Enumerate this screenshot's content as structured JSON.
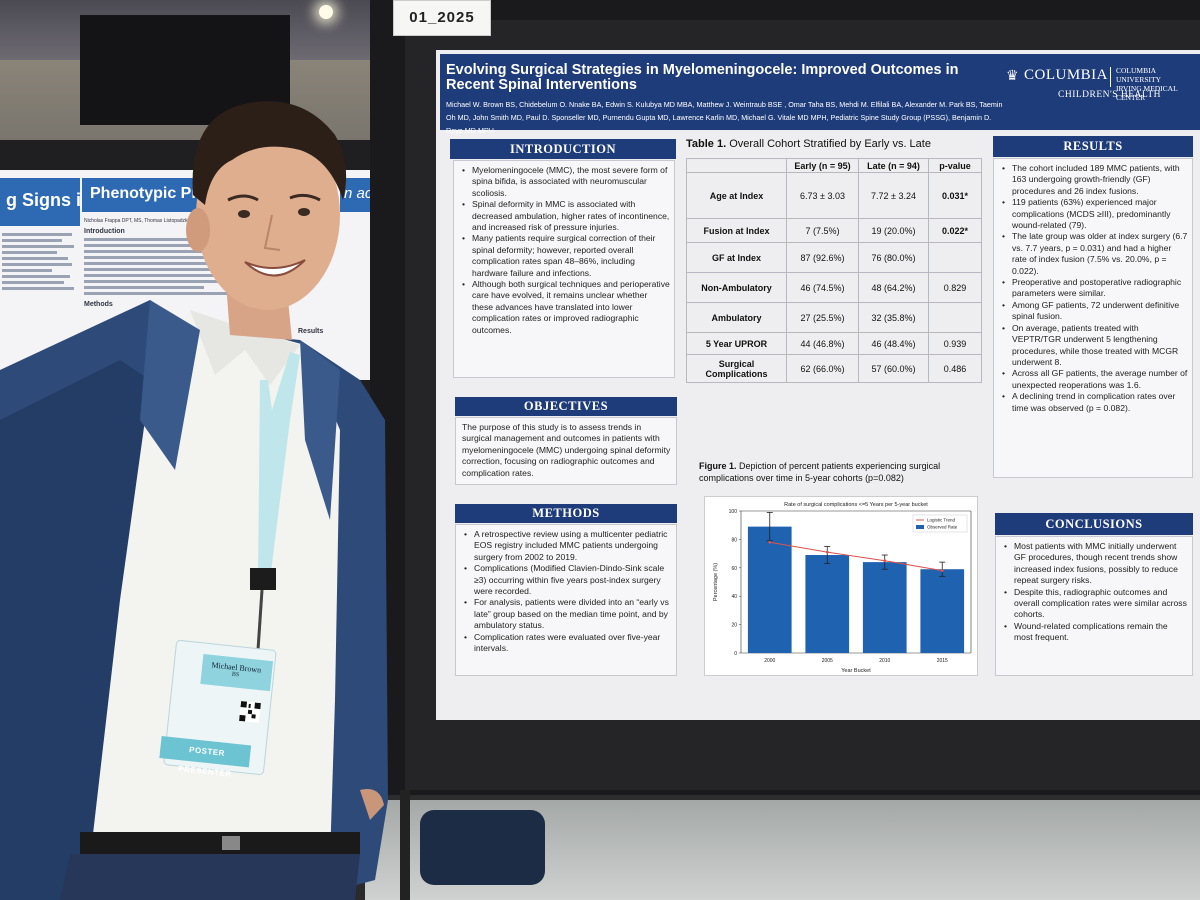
{
  "placard": "01_2025",
  "left_poster": {
    "heading_1": "g Signs in",
    "heading_2": "Phenotypic Predictors",
    "heading_3": "n ac",
    "authors": "Nicholas Frappa DPT, MS, Thomas Listopadzki MD, Ellen",
    "intro_label": "Introduction",
    "results_label": "Results",
    "methods_label": "Methods"
  },
  "poster": {
    "title": "Evolving Surgical Strategies in Myelomeningocele: Improved Outcomes in Recent Spinal Interventions",
    "authors": "Michael W. Brown BS, Chidebelum O. Nnake BA, Edwin S. Kulubya MD MBA, Matthew J. Weintraub BSE , Omar Taha BS, Mehdi M. Elfilali BA, Alexander M. Park BS, Taemin Oh MD, John Smith MD, Paul D. Sponseller MD, Purnendu Gupta MD, Lawrence Karlin MD, Michael G. Vitale MD MPH, Pediatric Spine Study Group (PSSG), Benjamin D. Roye MD MPH",
    "logo": {
      "name": "COLUMBIA",
      "sub_line1": "COLUMBIA UNIVERSITY",
      "sub_line2": "IRVING MEDICAL CENTER",
      "sub_brand": "CHILDREN'S HEALTH",
      "icon": "crown-icon"
    },
    "introduction": {
      "heading": "INTRODUCTION",
      "bullets": [
        "Myelomeningocele (MMC), the most severe form of spina bifida, is associated with neuromuscular scoliosis.",
        "Spinal deformity in MMC is associated with decreased ambulation, higher rates of incontinence, and increased risk of pressure injuries.",
        "Many patients require surgical correction of their spinal deformity; however, reported overall complication rates span 48–86%, including hardware failure and infections.",
        "Although both surgical techniques and perioperative care have evolved, it remains unclear whether these advances have translated into lower complication rates or improved radiographic outcomes."
      ]
    },
    "objectives": {
      "heading": "OBJECTIVES",
      "text": "The purpose of this study is to assess trends in surgical management and outcomes in patients with myelomeningocele (MMC) undergoing spinal deformity correction, focusing on radiographic outcomes and complication rates."
    },
    "methods": {
      "heading": "METHODS",
      "bullets": [
        "A retrospective review using a multicenter pediatric EOS registry included MMC patients undergoing surgery from 2002 to 2019.",
        "Complications (Modified Clavien-Dindo-Sink scale ≥3) occurring within five years post-index surgery were recorded.",
        "For analysis, patients were divided into an “early vs late” group based on the median time point, and by ambulatory status.",
        "Complication rates were evaluated over five-year intervals."
      ]
    },
    "table": {
      "label": "Table 1.",
      "title": "Overall Cohort Stratified by Early vs. Late",
      "headers": [
        "",
        "Early (n = 95)",
        "Late (n = 94)",
        "p-value"
      ],
      "rows": [
        {
          "label": "Age at Index",
          "early": "6.73 ± 3.03",
          "late": "7.72 ± 3.24",
          "p": "0.031*"
        },
        {
          "label": "Fusion at Index",
          "early": "7 (7.5%)",
          "late": "19 (20.0%)",
          "p": "0.022*"
        },
        {
          "label": "GF at Index",
          "early": "87 (92.6%)",
          "late": "76 (80.0%)",
          "p": ""
        },
        {
          "label": "Non-Ambulatory",
          "early": "46 (74.5%)",
          "late": "48 (64.2%)",
          "p": "0.829"
        },
        {
          "label": "Ambulatory",
          "early": "27 (25.5%)",
          "late": "32 (35.8%)",
          "p": ""
        },
        {
          "label": "5 Year UPROR",
          "early": "44 (46.8%)",
          "late": "46 (48.4%)",
          "p": "0.939"
        },
        {
          "label": "Surgical Complications",
          "early": "62 (66.0%)",
          "late": "57 (60.0%)",
          "p": "0.486"
        }
      ]
    },
    "figure": {
      "label": "Figure 1.",
      "caption": "Depiction of percent patients experiencing surgical complications over time in 5-year cohorts (p=0.082)"
    },
    "results": {
      "heading": "RESULTS",
      "bullets": [
        "The cohort included 189 MMC patients, with 163 undergoing growth-friendly (GF) procedures and 26 index fusions.",
        "119 patients (63%) experienced major complications (MCDS ≥III), predominantly wound-related (79).",
        "The late group was older at index surgery (6.7 vs. 7.7 years, p = 0.031) and had a higher rate of index fusion (7.5% vs. 20.0%, p = 0.022).",
        "Preoperative and postoperative radiographic parameters were similar.",
        "Among GF patients, 72 underwent definitive spinal fusion.",
        "On average, patients treated with VEPTR/TGR underwent 5 lengthening procedures, while those treated with MCGR underwent 8.",
        "Across all GF patients, the average number of unexpected reoperations was 1.6.",
        "A declining trend in complication rates over time was observed (p = 0.082)."
      ]
    },
    "conclusions": {
      "heading": "CONCLUSIONS",
      "bullets": [
        "Most patients with MMC initially underwent GF procedures, though recent trends show increased index fusions, possibly to reduce repeat surgery risks.",
        "Despite this, radiographic outcomes and overall complication rates were similar across cohorts.",
        "Wound-related complications remain the most frequent."
      ]
    }
  },
  "badge": {
    "name": "Michael Brown",
    "credential": "BS",
    "footer": "POSTER PRESENTER"
  },
  "chart_data": {
    "type": "bar",
    "title": "Rate of surgical complications <=5 Years per 5-year bucket",
    "xlabel": "Year Bucket",
    "ylabel": "Percentage (%)",
    "categories": [
      "2000",
      "2005",
      "2010",
      "2015"
    ],
    "ylim": [
      0,
      100
    ],
    "yticks": [
      0,
      20,
      40,
      60,
      80,
      100
    ],
    "grid": false,
    "legend_position": "top-right",
    "series": [
      {
        "name": "Observed Rate",
        "type": "bar",
        "color": "#1f63b0",
        "values": [
          89,
          69,
          64,
          59
        ],
        "error": [
          10,
          6,
          5,
          5
        ]
      },
      {
        "name": "Logistic Trend",
        "type": "line",
        "color": "#d9534f",
        "values": [
          78,
          71,
          65,
          58
        ]
      }
    ]
  }
}
